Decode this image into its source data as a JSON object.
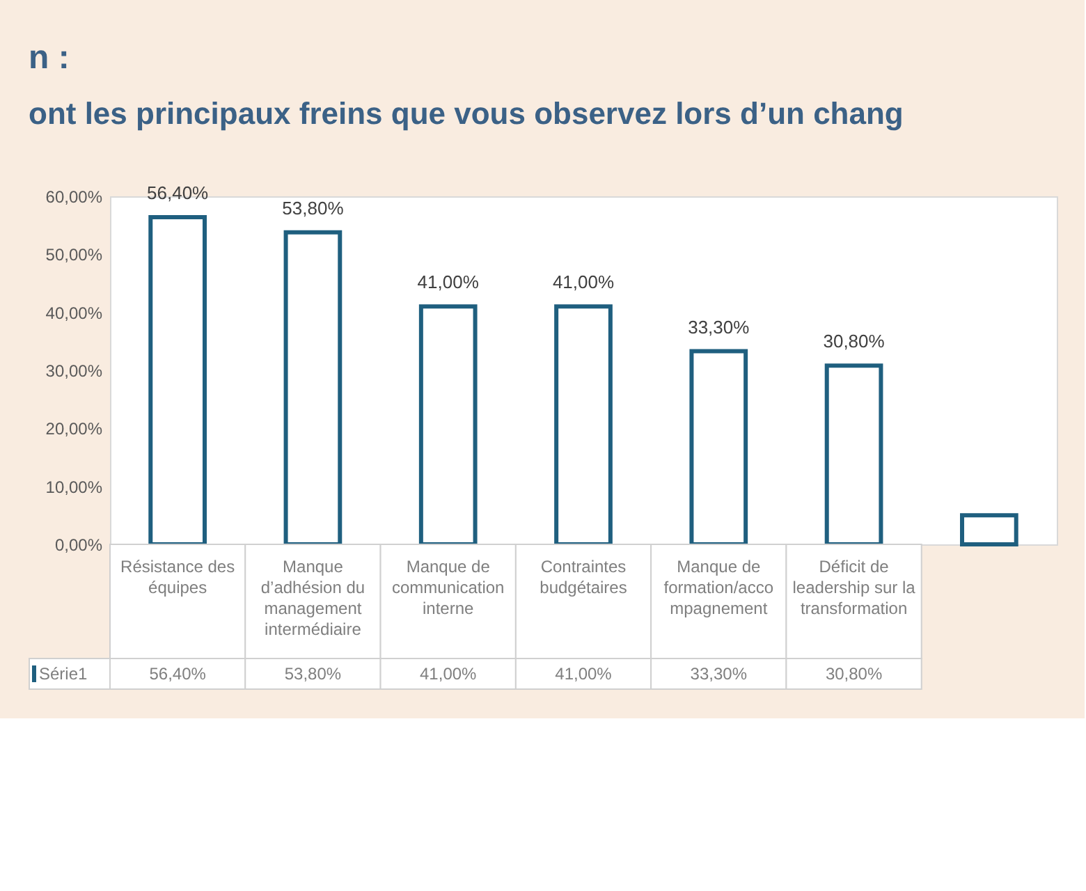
{
  "chart_data": {
    "type": "bar",
    "title": "n :",
    "subtitle": "ont les principaux freins que vous observez lors d’un chang",
    "categories": [
      "Résistance des\néquipes",
      "Manque\nd’adhésion du\nmanagement\nintermédiaire",
      "Manque de\ncommunication\ninterne",
      "Contraintes\nbudgétaires",
      "Manque de\nformation/acco\nmpagnement",
      "Déficit de\nleadership sur la\ntransformation",
      null
    ],
    "series": [
      {
        "name": "Série1",
        "color": "#1f5f7f",
        "values": [
          56.4,
          53.8,
          41.0,
          41.0,
          33.3,
          30.8,
          5.0
        ],
        "value_labels": [
          "56,40%",
          "53,80%",
          "41,00%",
          "41,00%",
          "33,30%",
          "30,80%",
          null
        ]
      }
    ],
    "ylim": [
      0,
      60
    ],
    "yticks": [
      {
        "value": 0,
        "label": "0,00%"
      },
      {
        "value": 10,
        "label": "10,00%"
      },
      {
        "value": 20,
        "label": "20,00%"
      },
      {
        "value": 30,
        "label": "30,00%"
      },
      {
        "value": 40,
        "label": "40,00%"
      },
      {
        "value": 50,
        "label": "50,00%"
      },
      {
        "value": 60,
        "label": "60,00%"
      }
    ],
    "legend": "bottom"
  }
}
